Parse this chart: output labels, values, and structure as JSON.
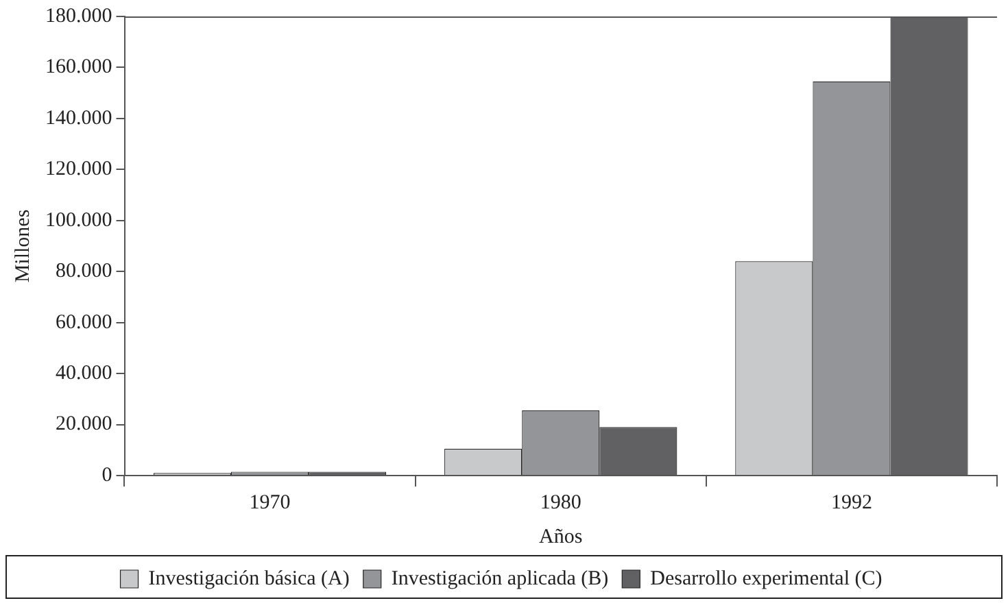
{
  "chart_data": {
    "type": "bar",
    "xlabel": "Años",
    "ylabel": "Millones",
    "categories": [
      "1970",
      "1980",
      "1992"
    ],
    "series": [
      {
        "name": "Investigación básica (A)",
        "color": "#c8c9cb",
        "values": [
          1000,
          10500,
          84000
        ]
      },
      {
        "name": "Investigación aplicada (B)",
        "color": "#949598",
        "values": [
          1500,
          25500,
          154500
        ]
      },
      {
        "name": "Desarrollo experimental (C)",
        "color": "#616163",
        "values": [
          1500,
          19000,
          180000
        ]
      }
    ],
    "ylim": [
      0,
      180000
    ],
    "yticks": [
      {
        "value": 0,
        "label": "0"
      },
      {
        "value": 20000,
        "label": "20.000"
      },
      {
        "value": 40000,
        "label": "40.000"
      },
      {
        "value": 60000,
        "label": "60.000"
      },
      {
        "value": 80000,
        "label": "80.000"
      },
      {
        "value": 100000,
        "label": "100.000"
      },
      {
        "value": 120000,
        "label": "120.000"
      },
      {
        "value": 140000,
        "label": "140.000"
      },
      {
        "value": 160000,
        "label": "160.000"
      },
      {
        "value": 180000,
        "label": "180.000"
      }
    ],
    "grid": false,
    "legend": "bottom"
  }
}
